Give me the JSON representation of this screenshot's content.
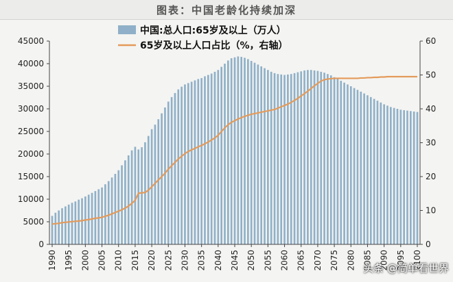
{
  "chart_data": {
    "type": "bar+line",
    "title": "图表：中国老龄化持续加深",
    "x": [
      1990,
      1991,
      1992,
      1993,
      1994,
      1995,
      1996,
      1997,
      1998,
      1999,
      2000,
      2001,
      2002,
      2003,
      2004,
      2005,
      2006,
      2007,
      2008,
      2009,
      2010,
      2011,
      2012,
      2013,
      2014,
      2015,
      2016,
      2017,
      2018,
      2019,
      2020,
      2021,
      2022,
      2023,
      2024,
      2025,
      2026,
      2027,
      2028,
      2029,
      2030,
      2031,
      2032,
      2033,
      2034,
      2035,
      2036,
      2037,
      2038,
      2039,
      2040,
      2041,
      2042,
      2043,
      2044,
      2045,
      2046,
      2047,
      2048,
      2049,
      2050,
      2051,
      2052,
      2053,
      2054,
      2055,
      2056,
      2057,
      2058,
      2059,
      2060,
      2061,
      2062,
      2063,
      2064,
      2065,
      2066,
      2067,
      2068,
      2069,
      2070,
      2071,
      2072,
      2073,
      2074,
      2075,
      2076,
      2077,
      2078,
      2079,
      2080,
      2081,
      2082,
      2083,
      2084,
      2085,
      2086,
      2087,
      2088,
      2089,
      2090,
      2091,
      2092,
      2093,
      2094,
      2095,
      2096,
      2097,
      2098,
      2099,
      2100
    ],
    "series": [
      {
        "name": "中国:总人口:65岁及以上（万人）",
        "axis": "left",
        "kind": "bar",
        "color": "#8fb0c8",
        "values": [
          6300,
          7000,
          7500,
          8000,
          8400,
          8800,
          9200,
          9500,
          9900,
          10200,
          10600,
          11000,
          11400,
          11800,
          12200,
          12600,
          13300,
          14000,
          14800,
          15600,
          16400,
          17500,
          18600,
          19700,
          20800,
          21600,
          21000,
          21500,
          22600,
          24000,
          25500,
          26500,
          27700,
          29000,
          30300,
          31600,
          32600,
          33500,
          34300,
          34900,
          35400,
          35700,
          36000,
          36300,
          36600,
          36800,
          37200,
          37500,
          37800,
          38200,
          38600,
          39300,
          40000,
          40700,
          41200,
          41400,
          41600,
          41500,
          41300,
          41000,
          40600,
          40200,
          39800,
          39400,
          39000,
          38600,
          38200,
          37900,
          37700,
          37600,
          37500,
          37600,
          37700,
          37900,
          38100,
          38300,
          38500,
          38600,
          38600,
          38500,
          38400,
          38200,
          38000,
          37700,
          37400,
          37000,
          36600,
          36200,
          35800,
          35400,
          35000,
          34600,
          34200,
          33800,
          33400,
          33000,
          32600,
          32200,
          31800,
          31400,
          31000,
          30700,
          30400,
          30200,
          30000,
          29800,
          29700,
          29600,
          29500,
          29400,
          29300
        ],
        "ylim": [
          0,
          45000
        ]
      },
      {
        "name": "65岁及以上人口占比（%，右轴）",
        "axis": "right",
        "kind": "line",
        "color": "#e49a5a",
        "values": [
          6.0,
          6.1,
          6.2,
          6.4,
          6.5,
          6.6,
          6.7,
          6.8,
          6.9,
          7.0,
          7.2,
          7.3,
          7.5,
          7.7,
          7.8,
          8.0,
          8.3,
          8.6,
          9.0,
          9.4,
          9.8,
          10.2,
          10.7,
          11.3,
          12.1,
          13.0,
          15.1,
          15.2,
          15.3,
          16.0,
          17.0,
          18.0,
          19.0,
          20.0,
          21.0,
          22.2,
          23.2,
          24.2,
          25.2,
          26.0,
          26.8,
          27.4,
          27.9,
          28.3,
          28.8,
          29.2,
          29.7,
          30.2,
          30.8,
          31.4,
          32.2,
          33.3,
          34.4,
          35.3,
          36.0,
          36.5,
          37.0,
          37.4,
          37.8,
          38.1,
          38.4,
          38.6,
          38.8,
          39.0,
          39.2,
          39.4,
          39.6,
          39.8,
          40.2,
          40.6,
          41.0,
          41.4,
          41.9,
          42.5,
          43.1,
          43.8,
          44.5,
          45.2,
          46.0,
          46.8,
          47.5,
          48.2,
          48.6,
          48.8,
          48.9,
          49.0,
          49.0,
          49.0,
          49.0,
          49.0,
          49.0,
          49.0,
          49.0,
          49.1,
          49.1,
          49.2,
          49.2,
          49.3,
          49.3,
          49.4,
          49.4,
          49.5,
          49.5,
          49.5,
          49.5,
          49.5,
          49.5,
          49.5,
          49.5,
          49.5,
          49.5
        ],
        "ylim": [
          0,
          60
        ]
      }
    ],
    "y_left_ticks": [
      "0",
      "5000",
      "10000",
      "15000",
      "20000",
      "25000",
      "30000",
      "35000",
      "40000",
      "45000"
    ],
    "y_right_ticks": [
      "0",
      "10",
      "20",
      "30",
      "40",
      "50",
      "60"
    ],
    "x_tick_labels": [
      "1990",
      "1995",
      "2000",
      "2005",
      "2010",
      "2015",
      "2020",
      "2025",
      "2030",
      "2035",
      "2040",
      "2045",
      "2050",
      "2055",
      "2060",
      "2065",
      "2070",
      "2075",
      "2080",
      "2085",
      "2090",
      "2095",
      "2100"
    ],
    "legend": [
      {
        "label": "中国:总人口:65岁及以上（万人）"
      },
      {
        "label": "65岁及以上人口占比（%，右轴）"
      }
    ]
  },
  "watermark": "头条 @简单看世界"
}
